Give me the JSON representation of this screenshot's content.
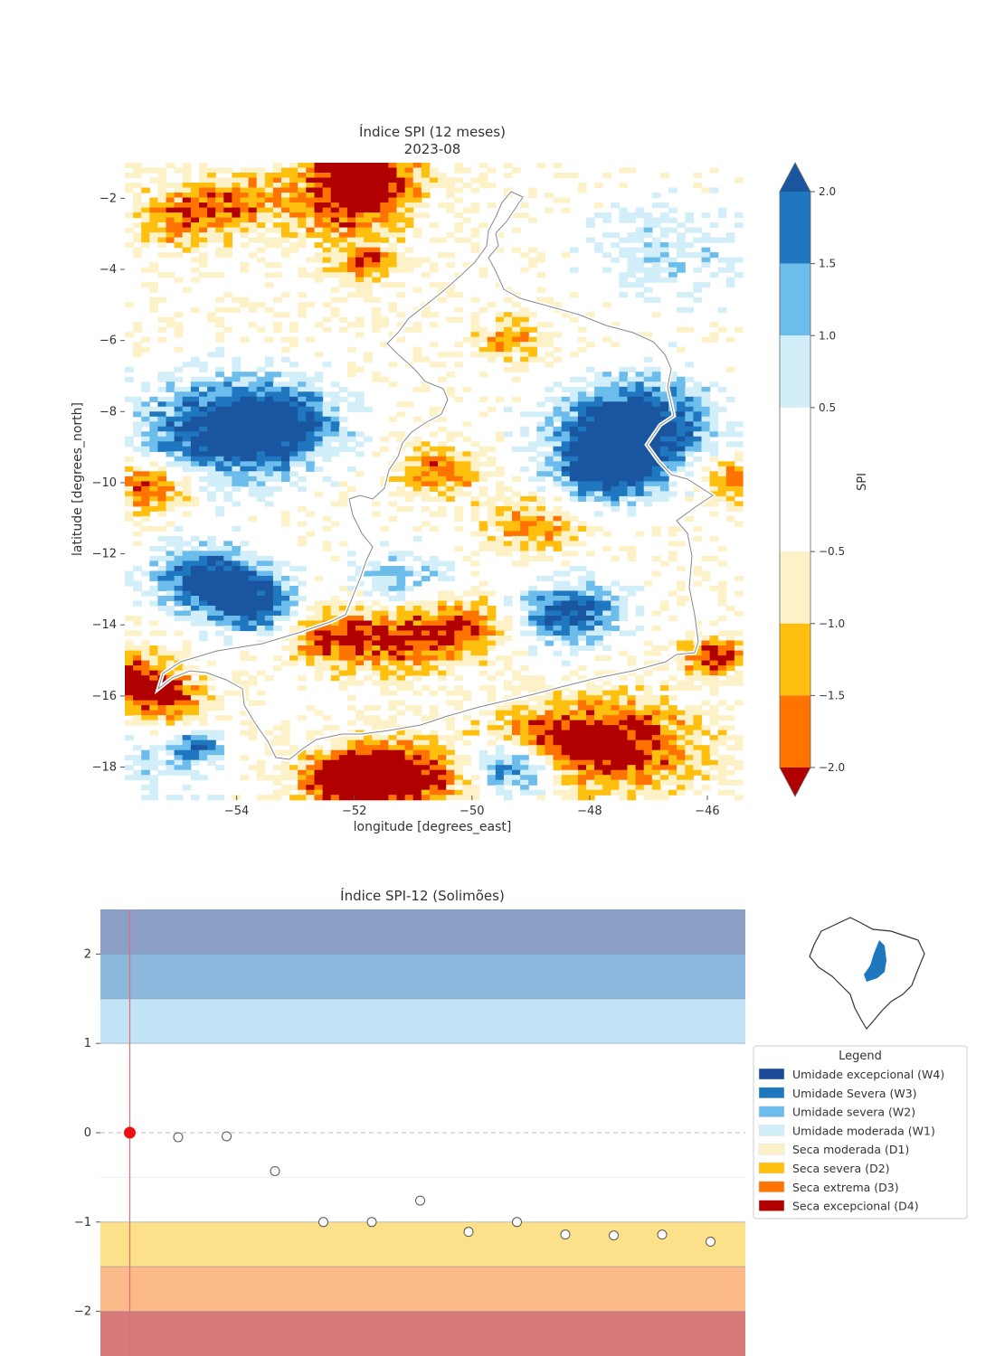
{
  "top": {
    "title_line1": "Índice SPI (12 meses)",
    "title_line2": "2023-08",
    "xlabel": "longitude [degrees_east]",
    "ylabel": "latitude [degrees_north]",
    "x_ticks": [
      {
        "value": -54,
        "label": "−54"
      },
      {
        "value": -52,
        "label": "−52"
      },
      {
        "value": -50,
        "label": "−50"
      },
      {
        "value": -48,
        "label": "−48"
      },
      {
        "value": -46,
        "label": "−46"
      }
    ],
    "y_ticks": [
      {
        "value": -2,
        "label": "−2"
      },
      {
        "value": -4,
        "label": "−4"
      },
      {
        "value": -6,
        "label": "−6"
      },
      {
        "value": -8,
        "label": "−8"
      },
      {
        "value": -10,
        "label": "−10"
      },
      {
        "value": -12,
        "label": "−12"
      },
      {
        "value": -14,
        "label": "−14"
      },
      {
        "value": -16,
        "label": "−16"
      },
      {
        "value": -18,
        "label": "−18"
      }
    ],
    "colorbar": {
      "label": "SPI",
      "ticks": [
        {
          "value": 2.0,
          "label": "2.0"
        },
        {
          "value": 1.5,
          "label": "1.5"
        },
        {
          "value": 1.0,
          "label": "1.0"
        },
        {
          "value": 0.5,
          "label": "0.5"
        },
        {
          "value": -0.5,
          "label": "−0.5"
        },
        {
          "value": -1.0,
          "label": "−1.0"
        },
        {
          "value": -1.5,
          "label": "−1.5"
        },
        {
          "value": -2.0,
          "label": "−2.0"
        }
      ],
      "bands": [
        {
          "from": 1.5,
          "to": 2.0,
          "color": "#1f77c0"
        },
        {
          "from": 1.0,
          "to": 1.5,
          "color": "#6cbdeb"
        },
        {
          "from": 0.5,
          "to": 1.0,
          "color": "#d2eef9"
        },
        {
          "from": -0.5,
          "to": 0.5,
          "color": "#ffffff"
        },
        {
          "from": -1.0,
          "to": -0.5,
          "color": "#fdf2c7"
        },
        {
          "from": -1.5,
          "to": -1.0,
          "color": "#ffbf0f"
        },
        {
          "from": -2.0,
          "to": -1.5,
          "color": "#ff7400"
        }
      ],
      "top_extend_color": "#1a56a0",
      "bottom_extend_color": "#b00000"
    }
  },
  "chart_data": [
    {
      "type": "heatmap",
      "title": "Índice SPI (12 meses)",
      "subtitle": "2023-08",
      "xlabel": "longitude [degrees_east]",
      "ylabel": "latitude [degrees_north]",
      "xlim": [
        -55.9,
        -45.4
      ],
      "ylim": [
        -18.8,
        -1.0
      ],
      "colorbar_label": "SPI",
      "colorbar_range": [
        -2.0,
        2.0
      ],
      "colors": [
        "#b00000",
        "#ff7400",
        "#ffbf0f",
        "#fdf2c7",
        "#ffffff",
        "#d2eef9",
        "#6cbdeb",
        "#1f77c0",
        "#1a56a0"
      ]
    },
    {
      "type": "scatter",
      "title": "Índice SPI-12 (Solimões)",
      "y_ticks": [
        {
          "value": 2,
          "label": "2"
        },
        {
          "value": 1,
          "label": "1"
        },
        {
          "value": 0,
          "label": "0"
        },
        {
          "value": -1,
          "label": "−1"
        },
        {
          "value": -2,
          "label": "−2"
        }
      ],
      "ylim": [
        -2.5,
        2.5
      ],
      "x": [
        1,
        2,
        3,
        4,
        5,
        6,
        7,
        8,
        9,
        10,
        11,
        12,
        13,
        14
      ],
      "values": [
        0.0,
        -0.05,
        -0.04,
        -0.43,
        -1.0,
        -1.0,
        -0.76,
        -1.11,
        -1.0,
        -1.14,
        -1.15,
        -1.14,
        -1.22,
        null
      ],
      "highlight_index": 0,
      "highlight_color": "#ee1111",
      "bands": [
        {
          "from": 2.0,
          "to": 2.5,
          "color": "#8a9ec6"
        },
        {
          "from": 1.5,
          "to": 2.0,
          "color": "#8bb8dc"
        },
        {
          "from": 1.0,
          "to": 1.5,
          "color": "#c2e4f6"
        },
        {
          "from": -1.5,
          "to": -1.0,
          "color": "#fde08a"
        },
        {
          "from": -2.0,
          "to": -1.5,
          "color": "#fcb98a"
        },
        {
          "from": -2.5,
          "to": -2.0,
          "color": "#d87a7a"
        }
      ],
      "legend": {
        "title": "Legend",
        "items": [
          {
            "label": "Umidade excepcional (W4)",
            "color": "#1a4a99"
          },
          {
            "label": "Umidade Severa (W3)",
            "color": "#1f77c0"
          },
          {
            "label": "Umidade severa (W2)",
            "color": "#6cbdeb"
          },
          {
            "label": "Umidade moderada (W1)",
            "color": "#d2eef9"
          },
          {
            "label": "Seca moderada (D1)",
            "color": "#fdf2c7"
          },
          {
            "label": "Seca severa (D2)",
            "color": "#ffbf0f"
          },
          {
            "label": "Seca extrema (D3)",
            "color": "#ff7400"
          },
          {
            "label": "Seca excepcional (D4)",
            "color": "#b00000"
          }
        ]
      }
    }
  ]
}
